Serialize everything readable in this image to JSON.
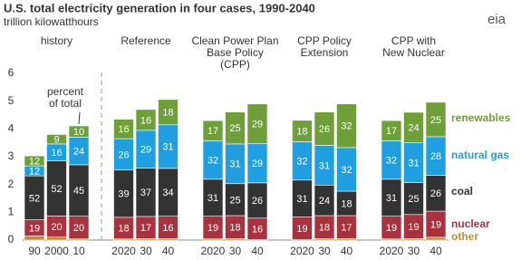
{
  "chart_data": {
    "type": "bar",
    "stacked": true,
    "title": "U.S. total electricity generation in four cases, 1990-2040",
    "subtitle": "trillion kilowatthours",
    "logo": "eia",
    "annotation": [
      "percent",
      "of total"
    ],
    "groups": [
      {
        "label": [
          "history"
        ],
        "categories": [
          "90",
          "2000",
          "10"
        ]
      },
      {
        "label": [
          "Reference"
        ],
        "categories": [
          "2020",
          "30",
          "40"
        ]
      },
      {
        "label": [
          "Clean Power Plan",
          "Base Policy",
          "(CPP)"
        ],
        "categories": [
          "2020",
          "30",
          "40"
        ]
      },
      {
        "label": [
          "CPP Policy",
          "Extension"
        ],
        "categories": [
          "2020",
          "30",
          "40"
        ]
      },
      {
        "label": [
          "CPP with",
          "New Nuclear"
        ],
        "categories": [
          "2020",
          "30",
          "40"
        ]
      }
    ],
    "series": [
      {
        "name": "other",
        "color": "#c98a2a",
        "values": [
          0.15,
          0.11,
          0.04,
          0.04,
          0.05,
          0.05,
          0.04,
          0.05,
          0.01,
          0.01,
          0.05,
          0.05,
          0.04,
          0.05,
          0.1
        ]
      },
      {
        "name": "nuclear",
        "color": "#a8333f",
        "values": [
          0.58,
          0.76,
          0.82,
          0.78,
          0.8,
          0.81,
          0.82,
          0.83,
          0.78,
          0.82,
          0.83,
          0.83,
          0.82,
          0.87,
          0.94
        ],
        "percent": [
          19,
          20,
          20,
          18,
          17,
          16,
          19,
          18,
          16,
          19,
          18,
          17,
          19,
          19,
          19
        ]
      },
      {
        "name": "coal",
        "color": "#333333",
        "values": [
          1.58,
          1.98,
          1.85,
          1.7,
          1.74,
          1.72,
          1.33,
          1.15,
          1.27,
          1.33,
          1.1,
          0.88,
          1.33,
          1.15,
          1.29
        ],
        "percent": [
          52,
          52,
          45,
          39,
          37,
          34,
          31,
          25,
          26,
          31,
          24,
          18,
          31,
          25,
          26
        ]
      },
      {
        "name": "natural gas",
        "color": "#1f9ee0",
        "values": [
          0.36,
          0.61,
          0.99,
          1.13,
          1.36,
          1.57,
          1.38,
          1.43,
          1.42,
          1.38,
          1.43,
          1.57,
          1.38,
          1.43,
          1.39
        ],
        "percent": [
          12,
          16,
          24,
          26,
          29,
          31,
          32,
          31,
          29,
          32,
          31,
          32,
          32,
          31,
          28
        ]
      },
      {
        "name": "renewables",
        "color": "#6e9f38",
        "values": [
          0.36,
          0.34,
          0.41,
          0.7,
          0.75,
          0.91,
          0.73,
          1.15,
          1.42,
          0.77,
          1.2,
          1.57,
          0.73,
          1.1,
          1.24
        ],
        "percent": [
          12,
          9,
          10,
          16,
          16,
          18,
          17,
          25,
          29,
          18,
          26,
          32,
          17,
          24,
          25
        ]
      }
    ],
    "ylim": [
      0,
      6
    ],
    "yticks": [
      0,
      1,
      2,
      3,
      4,
      5,
      6
    ],
    "grid": false
  }
}
